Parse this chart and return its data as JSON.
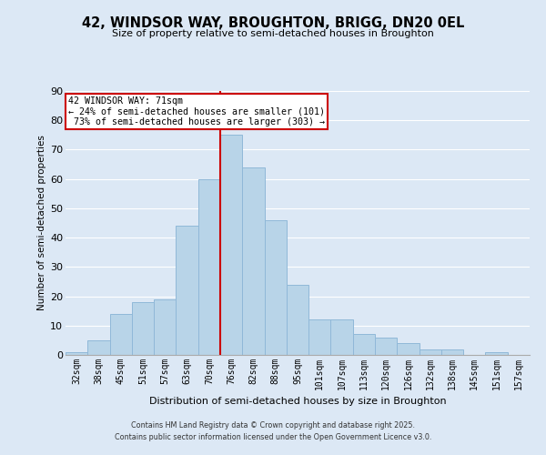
{
  "title": "42, WINDSOR WAY, BROUGHTON, BRIGG, DN20 0EL",
  "subtitle": "Size of property relative to semi-detached houses in Broughton",
  "xlabel": "Distribution of semi-detached houses by size in Broughton",
  "ylabel": "Number of semi-detached properties",
  "bar_labels": [
    "32sqm",
    "38sqm",
    "45sqm",
    "51sqm",
    "57sqm",
    "63sqm",
    "70sqm",
    "76sqm",
    "82sqm",
    "88sqm",
    "95sqm",
    "101sqm",
    "107sqm",
    "113sqm",
    "120sqm",
    "126sqm",
    "132sqm",
    "138sqm",
    "145sqm",
    "151sqm",
    "157sqm"
  ],
  "bar_values": [
    1,
    5,
    14,
    18,
    19,
    44,
    60,
    75,
    64,
    46,
    24,
    12,
    12,
    7,
    6,
    4,
    2,
    2,
    0,
    1,
    0
  ],
  "bar_color": "#b8d4e8",
  "bar_edge_color": "#90b8d8",
  "ylim": [
    0,
    90
  ],
  "yticks": [
    0,
    10,
    20,
    30,
    40,
    50,
    60,
    70,
    80,
    90
  ],
  "vline_color": "#cc0000",
  "annotation_title": "42 WINDSOR WAY: 71sqm",
  "annotation_line1": "← 24% of semi-detached houses are smaller (101)",
  "annotation_line2": " 73% of semi-detached houses are larger (303) →",
  "annotation_box_color": "#ffffff",
  "annotation_box_edge": "#cc0000",
  "bg_color": "#dce8f5",
  "grid_color": "#ffffff",
  "footer1": "Contains HM Land Registry data © Crown copyright and database right 2025.",
  "footer2": "Contains public sector information licensed under the Open Government Licence v3.0."
}
